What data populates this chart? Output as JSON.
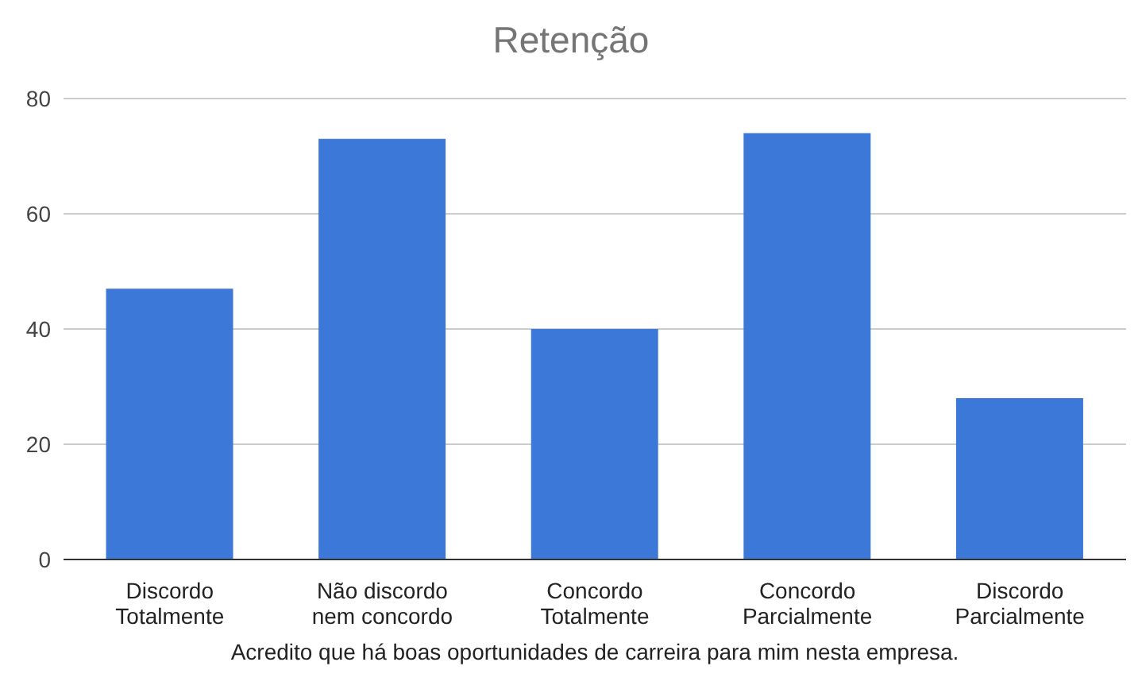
{
  "chart_data": {
    "type": "bar",
    "title": "Retenção",
    "xlabel": "Acredito que há boas oportunidades de carreira para mim nesta empresa.",
    "categories": [
      "Discordo Totalmente",
      "Não discordo nem concordo",
      "Concordo Totalmente",
      "Concordo Parcialmente",
      "Discordo Parcialmente"
    ],
    "values": [
      47,
      73,
      40,
      74,
      28
    ],
    "color": "#3c78d8",
    "ylim": [
      0,
      80
    ],
    "yticks": [
      0,
      20,
      40,
      60,
      80
    ],
    "grid": "y"
  }
}
